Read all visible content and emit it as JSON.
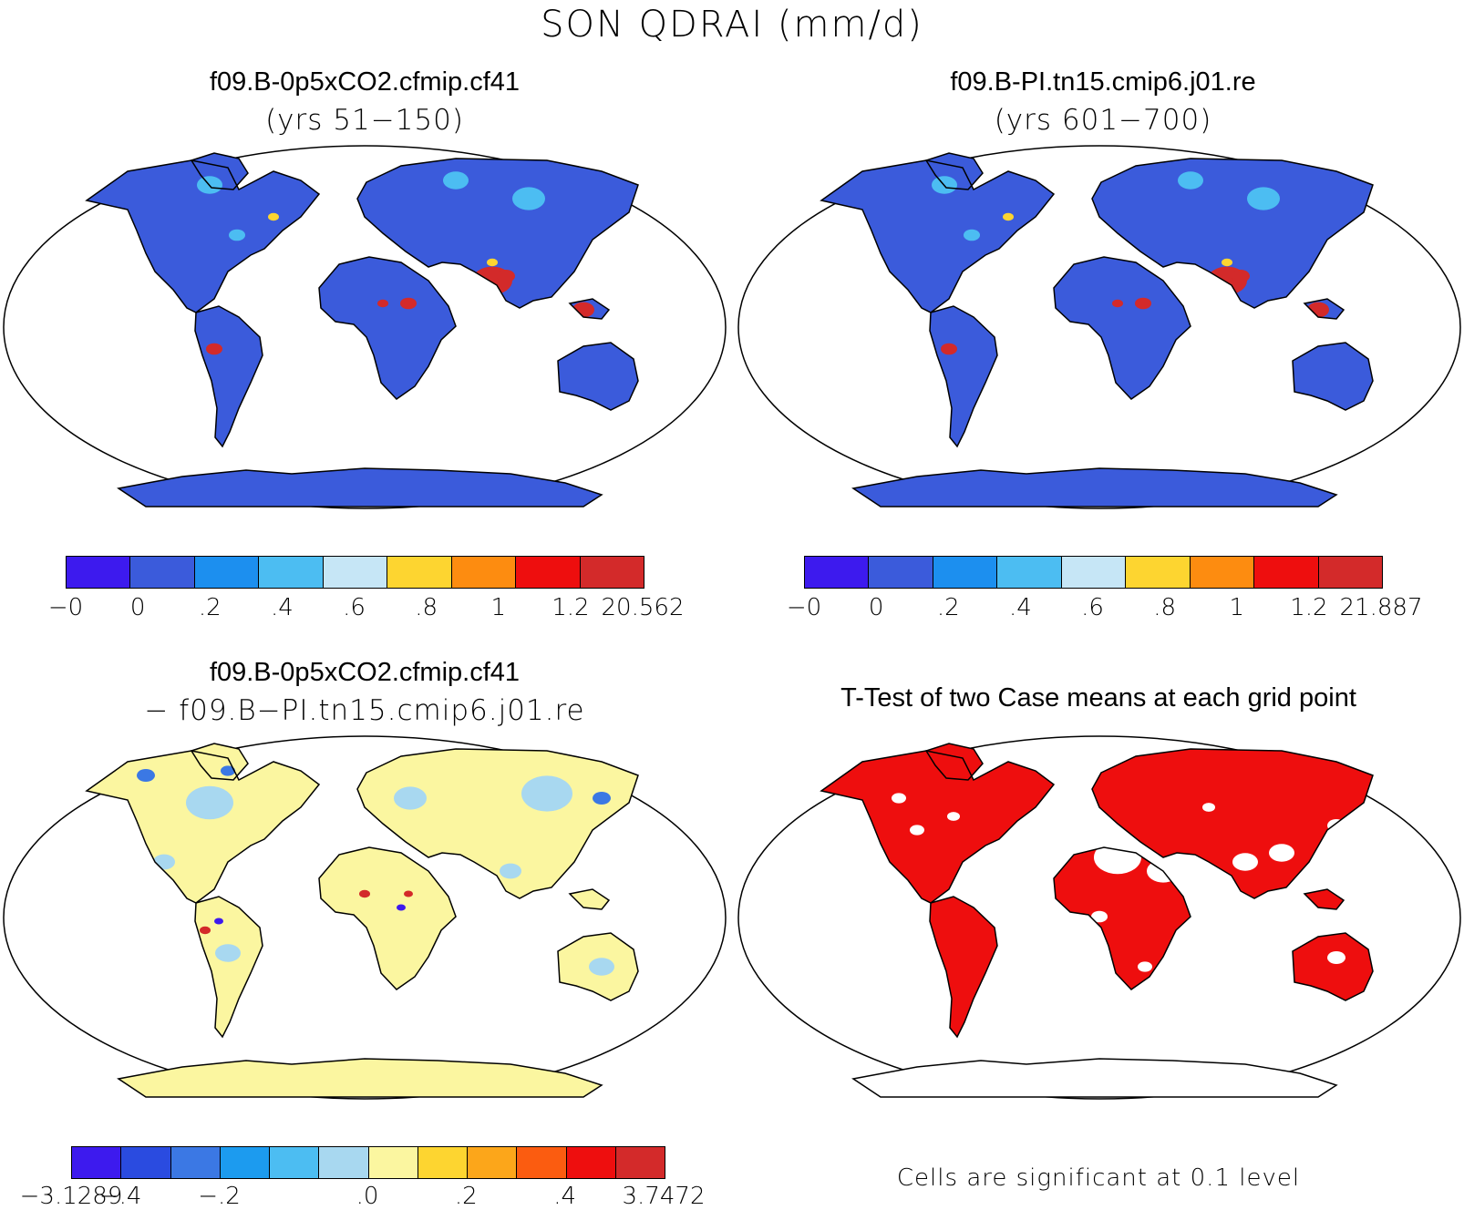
{
  "title": "SON QDRAI (mm/d)",
  "panels": [
    {
      "title": "f09.B-0p5xCO2.cfmip.cf41",
      "subtitle": "(yrs 51−150)",
      "colorbar": {
        "colors": [
          "#3d1aee",
          "#3b5bdb",
          "#1c8fef",
          "#4cbdf2",
          "#c6e6f6",
          "#fdd530",
          "#fd8c10",
          "#ee0e0e",
          "#d32a2a"
        ],
        "labels": [
          "−0",
          "0",
          ".2",
          ".4",
          ".6",
          ".8",
          "1",
          "1.2",
          "20.562"
        ]
      }
    },
    {
      "title": "f09.B-PI.tn15.cmip6.j01.re",
      "subtitle": "(yrs 601−700)",
      "colorbar": {
        "colors": [
          "#3d1aee",
          "#3b5bdb",
          "#1c8fef",
          "#4cbdf2",
          "#c6e6f6",
          "#fdd530",
          "#fd8c10",
          "#ee0e0e",
          "#d32a2a"
        ],
        "labels": [
          "−0",
          "0",
          ".2",
          ".4",
          ".6",
          ".8",
          "1",
          "1.2",
          "21.887"
        ]
      }
    },
    {
      "title": "f09.B-0p5xCO2.cfmip.cf41",
      "subtitle": "− f09.B−PI.tn15.cmip6.j01.re",
      "colorbar": {
        "colors": [
          "#3d1aee",
          "#2a4be0",
          "#3b78e4",
          "#1c9bef",
          "#4cbdf2",
          "#a8d8f0",
          "#fbf6a0",
          "#fdd530",
          "#fca61a",
          "#fb5c10",
          "#ee0e0e",
          "#d32a2a"
        ],
        "labels": [
          "−3.1289",
          "−.4",
          "",
          "−.2",
          "",
          "",
          ".0",
          "",
          ".2",
          "",
          ".4",
          "",
          "3.7472"
        ]
      }
    },
    {
      "title": "T-Test of two Case means at each grid point",
      "note": "Cells are significant at 0.1 level",
      "colors": {
        "significant": "#ee0e0e"
      }
    }
  ]
}
